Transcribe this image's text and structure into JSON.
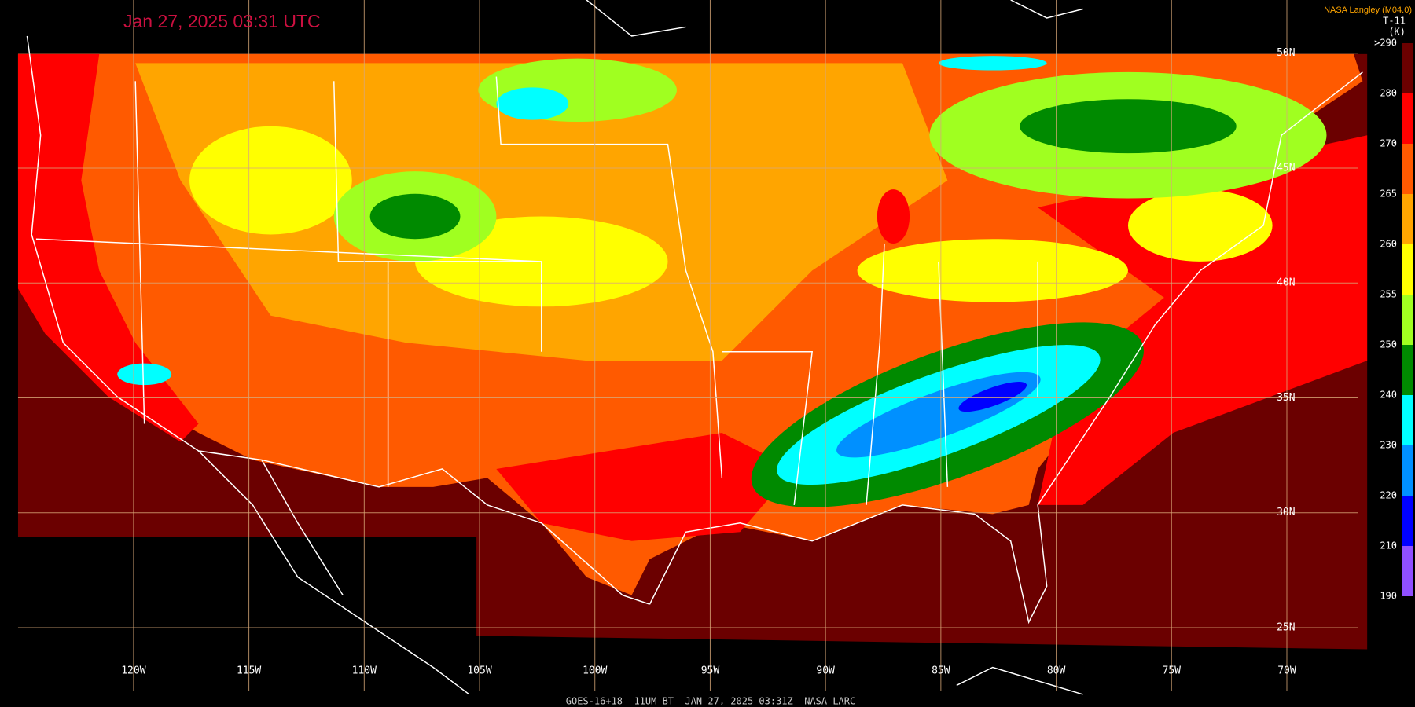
{
  "title": "Jan 27, 2025 03:31 UTC",
  "credit": "NASA Langley (M04.0)",
  "product": "T-11",
  "unit": "(K)",
  "colorbar": {
    "labels": [
      ">290",
      "280",
      "270",
      "265",
      "260",
      "255",
      "250",
      "240",
      "230",
      "220",
      "210",
      "190"
    ],
    "colors": [
      "#6b0000",
      "#ff0000",
      "#ff5a00",
      "#ffa500",
      "#ffff00",
      "#a0ff20",
      "#008a00",
      "#00ffff",
      "#0090ff",
      "#0000ff",
      "#9050ff"
    ]
  },
  "longitude_labels": [
    "120W",
    "115W",
    "110W",
    "105W",
    "100W",
    "95W",
    "90W",
    "85W",
    "80W",
    "75W",
    "70W"
  ],
  "latitude_labels": [
    "50N",
    "45N",
    "40N",
    "35N",
    "30N",
    "25N"
  ],
  "footer": "GOES-16+18  11UM BT  JAN 27, 2025 03:31Z  NASA LARC"
}
